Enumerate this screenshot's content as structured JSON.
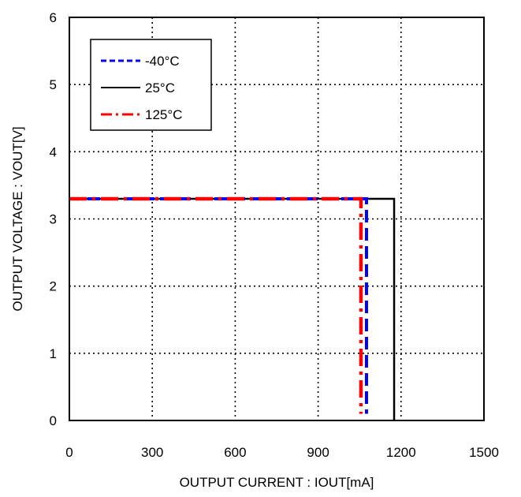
{
  "chart_data": {
    "type": "line",
    "xlabel": "OUTPUT CURRENT : IOUT[mA]",
    "ylabel": "OUTPUT VOLTAGE : VOUT[V]",
    "xlim": [
      0,
      1500
    ],
    "ylim": [
      0,
      6
    ],
    "xticks": [
      "0",
      "300",
      "600",
      "900",
      "1200",
      "1500"
    ],
    "yticks": [
      "0",
      "1",
      "2",
      "3",
      "4",
      "5",
      "6"
    ],
    "grid": true,
    "grid_style": "dotted",
    "legend_position": "top-left",
    "series": [
      {
        "name": "-40°C",
        "color": "#0000ff",
        "dash": "dashed",
        "x": [
          0,
          1075,
          1075
        ],
        "y": [
          3.3,
          3.3,
          0.1
        ]
      },
      {
        "name": "25°C",
        "color": "#000000",
        "dash": "solid",
        "x": [
          0,
          1175,
          1175
        ],
        "y": [
          3.3,
          3.3,
          0
        ]
      },
      {
        "name": "125°C",
        "color": "#ff0000",
        "dash": "dashdot",
        "x": [
          0,
          1055,
          1055
        ],
        "y": [
          3.3,
          3.3,
          0.1
        ]
      }
    ]
  }
}
